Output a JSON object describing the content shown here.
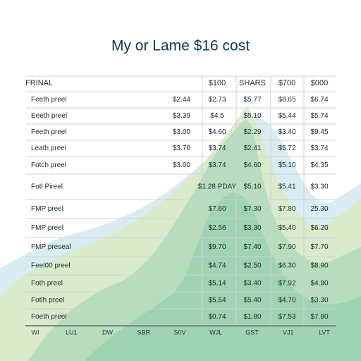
{
  "title": "My or Lame $16 cost",
  "table": {
    "header": [
      "FRINAL",
      null,
      "$100",
      "SHARS",
      "$700",
      "$000"
    ],
    "rows": [
      [
        "Feeth preel",
        "$2.44",
        "$2.73",
        "$5.77",
        "$8.65",
        "$6.74"
      ],
      [
        "Eeeth preel",
        "$3.39",
        "$4.5",
        "$5.10",
        "$5.44",
        "$5.74"
      ],
      [
        "Feeth preel",
        "$3.00",
        "$4.60",
        "$2.29",
        "$3.40",
        "$9.45"
      ],
      [
        "Leath preel",
        "$3.70",
        "$3.74",
        "$2.41",
        "$5.72",
        "$3.74"
      ],
      [
        "Fotch preel",
        "$3.00",
        "$3.74",
        "$4.60",
        "$5.10",
        "$4.35"
      ],
      [
        "Fotl Pireel",
        null,
        "$1.28 PDAY",
        "$5.10",
        "$5.41",
        "$3.30"
      ],
      [
        "FMP preel",
        null,
        "$7.60",
        "$7.30",
        "$7.80",
        "25.30"
      ],
      [
        "FMP preel",
        null,
        "$2.56",
        "$3.30",
        "$5.40",
        "$6.20"
      ],
      [
        "FMP preseal",
        null,
        "$9.70",
        "$7.40",
        "$7.90",
        "$7.70"
      ],
      [
        "Feel00 preel",
        null,
        "$4.74",
        "$2.50",
        "$6.30",
        "$8.90"
      ],
      [
        "Foth preel",
        null,
        "$5.14",
        "$3.40",
        "$7.92",
        "$4.90"
      ],
      [
        "Fotlh preel",
        null,
        "$5.54",
        "$5.40",
        "$4.70",
        "$3.30"
      ],
      [
        "Foeth preel",
        null,
        "$0.74",
        "$1.80",
        "$7.53",
        "$7.80"
      ]
    ]
  },
  "footer": {
    "labels": [
      "WI",
      "LU1",
      "DW",
      "SBR",
      "S0V",
      "WJL",
      "GST",
      "VJ1",
      "LVT"
    ]
  }
}
